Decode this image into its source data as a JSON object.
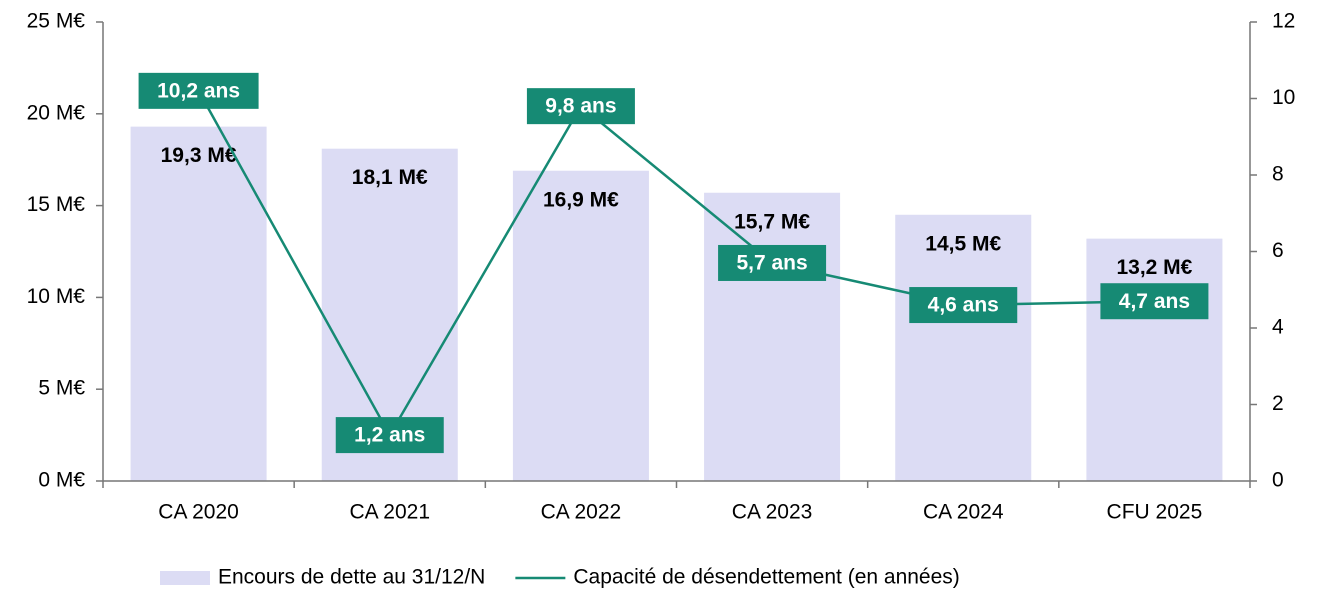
{
  "chart_data": {
    "type": "combo",
    "categories": [
      "CA 2020",
      "CA 2021",
      "CA 2022",
      "CA 2023",
      "CA 2024",
      "CFU 2025"
    ],
    "series": [
      {
        "name": "Encours de dette au 31/12/N",
        "type": "bar",
        "color": "#dcdcf4",
        "values": [
          19.3,
          18.1,
          16.9,
          15.7,
          14.5,
          13.2
        ],
        "value_labels": [
          "19,3 M€",
          "18,1 M€",
          "16,9 M€",
          "15,7 M€",
          "14,5 M€",
          "13,2 M€"
        ]
      },
      {
        "name": "Capacité de désendettement (en années)",
        "type": "line",
        "color": "#168a74",
        "axis": "y2",
        "values": [
          10.2,
          1.2,
          9.8,
          5.7,
          4.6,
          4.7
        ],
        "value_labels": [
          "10,2 ans",
          "1,2 ans",
          "9,8 ans",
          "5,7 ans",
          "4,6 ans",
          "4,7 ans"
        ]
      }
    ],
    "ylim": [
      0,
      25
    ],
    "yticks": [
      {
        "value": 0,
        "label": "0 M€"
      },
      {
        "value": 5,
        "label": "5 M€"
      },
      {
        "value": 10,
        "label": "10 M€"
      },
      {
        "value": 15,
        "label": "15 M€"
      },
      {
        "value": 20,
        "label": "20 M€"
      },
      {
        "value": 25,
        "label": "25 M€"
      }
    ],
    "y2lim": [
      0,
      12
    ],
    "y2ticks": [
      0,
      2,
      4,
      6,
      8,
      10,
      12
    ],
    "legend": "bottom"
  }
}
